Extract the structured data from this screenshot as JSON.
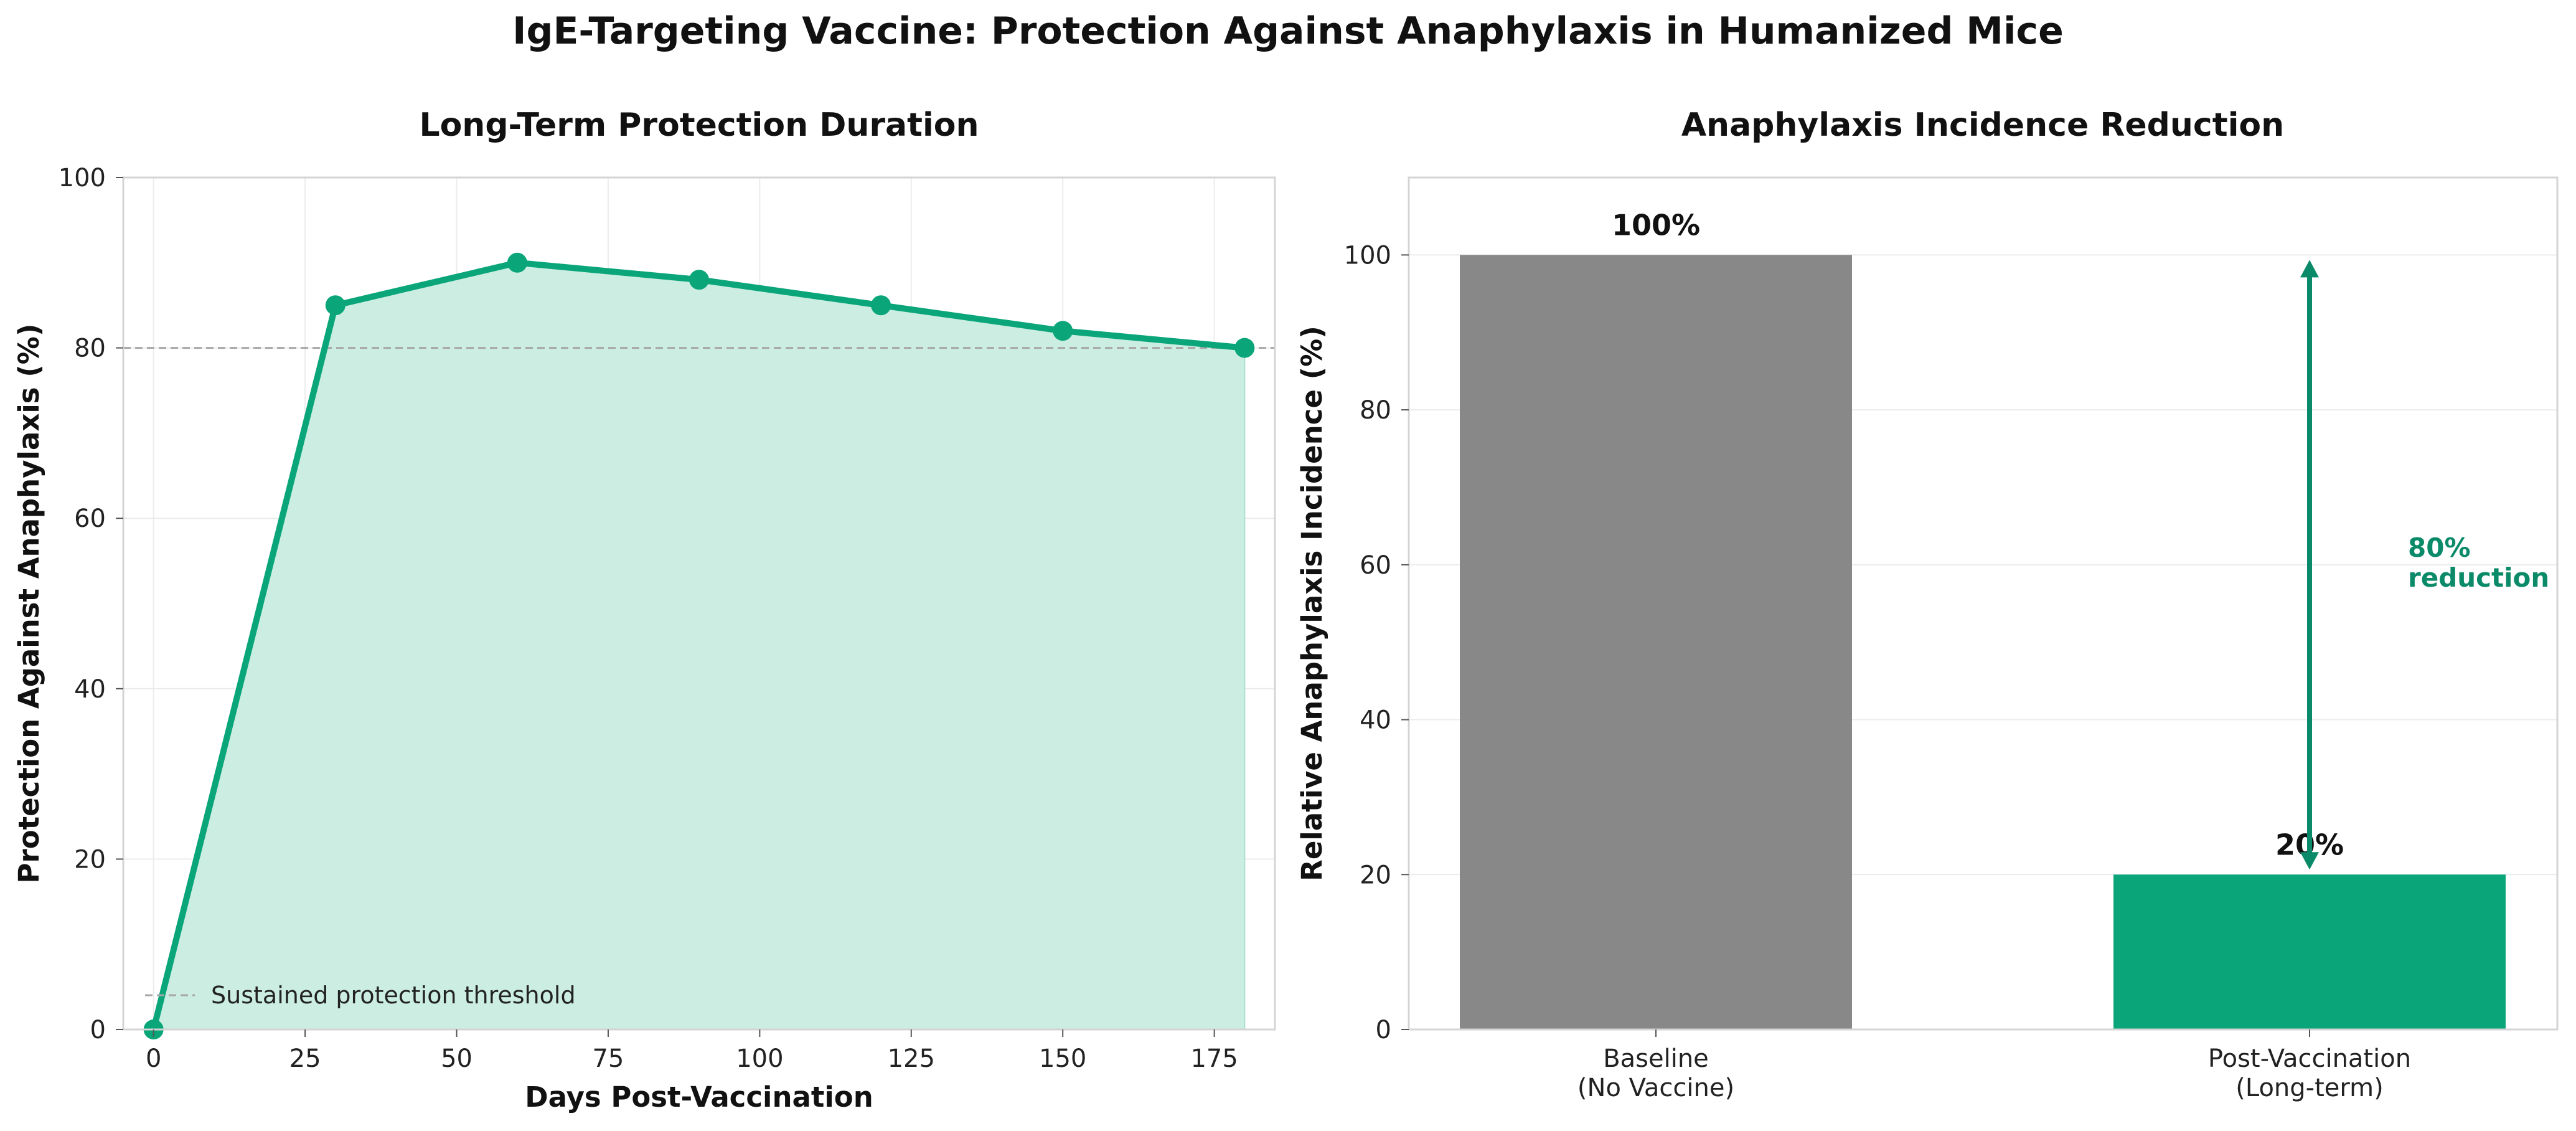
{
  "figure_title": "IgE-Targeting Vaccine: Protection Against Anaphylaxis in Humanized Mice",
  "colors": {
    "accent": "#0aa67a",
    "accent_dark": "#0a8a68",
    "fill": "#cbede2",
    "baseline_bar": "#888888",
    "grid": "#ececec",
    "threshold": "#a8a8a8",
    "spine": "#d4d4d4"
  },
  "chart_data": [
    {
      "type": "line",
      "title": "Long-Term Protection Duration",
      "xlabel": "Days Post-Vaccination",
      "ylabel": "Protection Against Anaphylaxis (%)",
      "x": [
        0,
        30,
        60,
        90,
        120,
        150,
        180
      ],
      "y": [
        0,
        85,
        90,
        88,
        85,
        82,
        80
      ],
      "xlim": [
        -5,
        185
      ],
      "ylim": [
        0,
        100
      ],
      "xticks": [
        0,
        25,
        50,
        75,
        100,
        125,
        150,
        175
      ],
      "yticks": [
        0,
        20,
        40,
        60,
        80,
        100
      ],
      "area_fill": true,
      "threshold": {
        "value": 80,
        "label": "Sustained protection threshold"
      },
      "legend": "lower-left",
      "grid": true
    },
    {
      "type": "bar",
      "title": "Anaphylaxis Incidence Reduction",
      "ylabel": "Relative Anaphylaxis Incidence (%)",
      "categories": [
        {
          "line1": "Baseline",
          "line2": "(No Vaccine)"
        },
        {
          "line1": "Post-Vaccination",
          "line2": "(Long-term)"
        }
      ],
      "values": [
        100,
        20
      ],
      "value_labels": [
        "100%",
        "20%"
      ],
      "ylim": [
        0,
        110
      ],
      "yticks": [
        0,
        20,
        40,
        60,
        80,
        100
      ],
      "grid": true,
      "annotation": {
        "from": 100,
        "to": 20,
        "line1": "80%",
        "line2": "reduction"
      }
    }
  ]
}
